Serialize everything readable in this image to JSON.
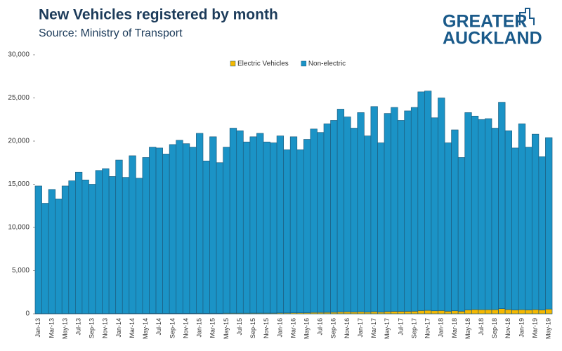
{
  "chart_data": {
    "type": "stacked_bar",
    "title": "New Vehicles registered by month",
    "subtitle": "Source: Ministry of Transport",
    "logo": [
      "GREATER",
      "AUCKLAND"
    ],
    "categories": [
      "Jan-13",
      null,
      "Mar-13",
      null,
      "May-13",
      null,
      "Jul-13",
      null,
      "Sep-13",
      null,
      "Nov-13",
      null,
      "Jan-14",
      null,
      "Mar-14",
      null,
      "May-14",
      null,
      "Jul-14",
      null,
      "Sep-14",
      null,
      "Nov-14",
      null,
      "Jan-15",
      null,
      "Mar-15",
      null,
      "May-15",
      null,
      "Jul-15",
      null,
      "Sep-15",
      null,
      "Nov-15",
      null,
      "Jan-16",
      null,
      "Mar-16",
      null,
      "May-16",
      null,
      "Jul-16",
      null,
      "Sep-16",
      null,
      "Nov-16",
      null,
      "Jan-17",
      null,
      "Mar-17",
      null,
      "May-17",
      null,
      "Jul-17",
      null,
      "Sep-17",
      null,
      "Nov-17",
      null,
      "Jan-18",
      null,
      "Mar-18",
      null,
      "May-18",
      null,
      "Jul-18",
      null,
      "Sep-18",
      null,
      "Nov-18",
      null,
      "Jan-19",
      null,
      "Mar-19",
      null,
      "May-19"
    ],
    "series": [
      {
        "name": "Electric Vehicles",
        "color": "#f5b800",
        "values": [
          20,
          20,
          25,
          20,
          25,
          25,
          30,
          25,
          30,
          30,
          30,
          30,
          35,
          30,
          40,
          35,
          40,
          45,
          45,
          45,
          50,
          50,
          50,
          50,
          60,
          50,
          60,
          55,
          70,
          70,
          70,
          70,
          80,
          80,
          80,
          80,
          100,
          100,
          110,
          110,
          120,
          150,
          160,
          170,
          180,
          220,
          230,
          210,
          230,
          200,
          250,
          200,
          260,
          280,
          280,
          290,
          300,
          380,
          400,
          350,
          380,
          300,
          350,
          300,
          450,
          500,
          480,
          480,
          480,
          600,
          500,
          450,
          480,
          450,
          500,
          450,
          550
        ]
      },
      {
        "name": "Non-electric",
        "color": "#1b93c6",
        "values": [
          14780,
          12780,
          14375,
          13280,
          14775,
          15375,
          16370,
          15475,
          14970,
          16570,
          16770,
          15870,
          17765,
          15770,
          18260,
          15665,
          18060,
          19255,
          19155,
          18455,
          19550,
          20050,
          19650,
          19250,
          20840,
          17650,
          20440,
          17445,
          19230,
          21430,
          21130,
          19830,
          20420,
          20820,
          19820,
          19720,
          20500,
          18900,
          20390,
          18890,
          20080,
          21250,
          20840,
          21830,
          22220,
          23480,
          22570,
          21290,
          23070,
          20400,
          23750,
          19600,
          22940,
          23620,
          22120,
          23210,
          23600,
          25320,
          25400,
          22350,
          24620,
          19500,
          20950,
          17800,
          22850,
          22400,
          22020,
          22120,
          21020,
          23900,
          20700,
          18750,
          21520,
          18850,
          20300,
          17750,
          19850
        ]
      }
    ],
    "ylim": [
      0,
      30000
    ],
    "yticks": [
      0,
      {
        "value": 5000,
        "label": "5,000"
      },
      {
        "value": 10000,
        "label": "10,000"
      },
      {
        "value": 15000,
        "label": "15,000"
      },
      {
        "value": 20000,
        "label": "20,000"
      },
      {
        "value": 25000,
        "label": "25,000"
      },
      {
        "value": 30000,
        "label": "30,000"
      }
    ],
    "legend": "top"
  }
}
